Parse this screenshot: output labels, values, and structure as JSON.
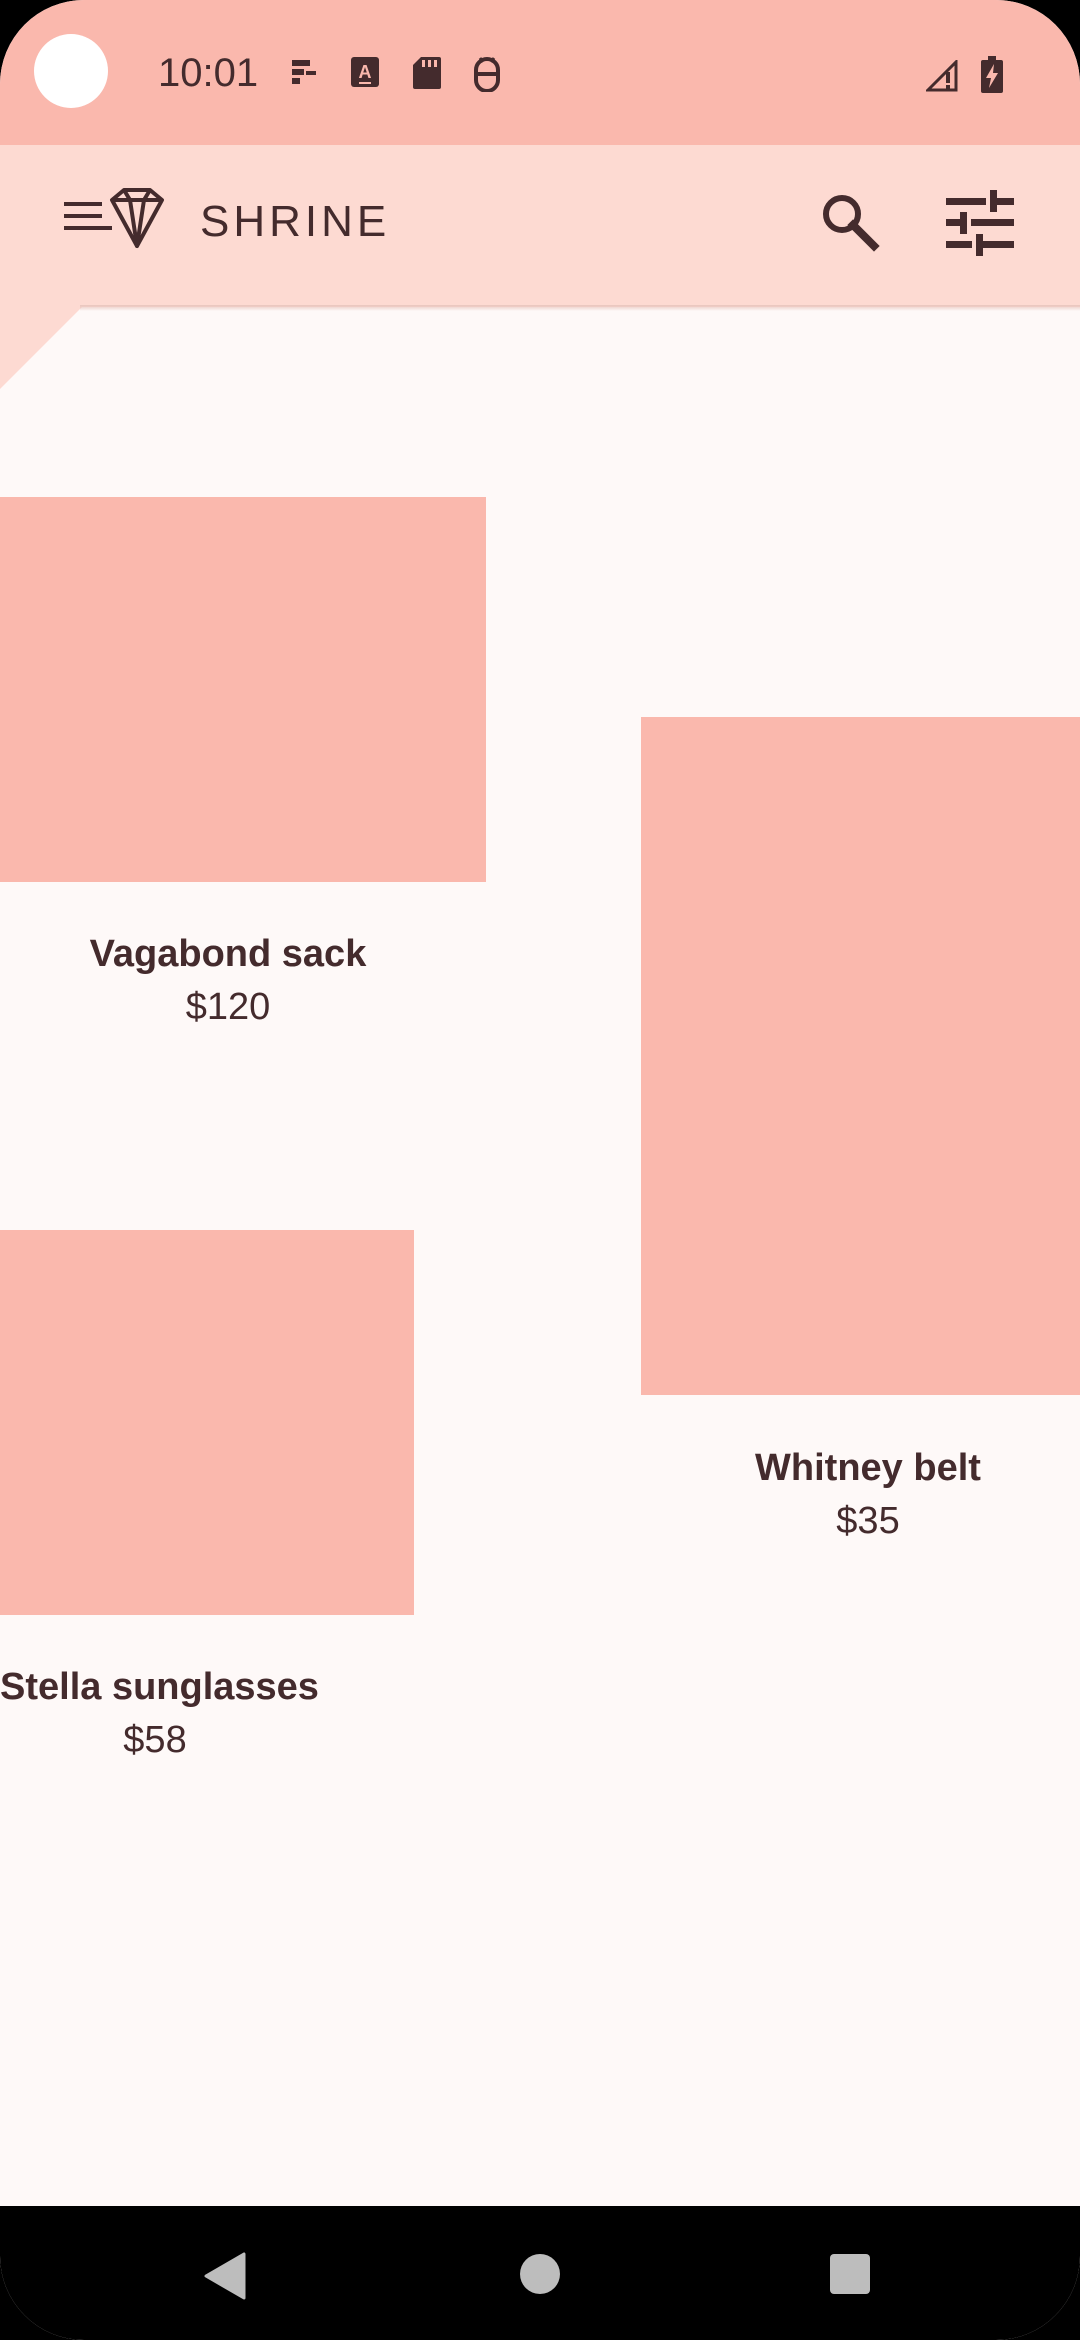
{
  "status_bar": {
    "time": "10:01",
    "icons": [
      "notification-icon",
      "keyboard-icon",
      "sd-card-icon",
      "android-debug-icon",
      "signal-icon",
      "battery-charging-icon"
    ]
  },
  "app_bar": {
    "title": "SHRINE",
    "icons": [
      "menu-icon",
      "diamond-logo-icon",
      "search-icon",
      "tune-icon"
    ]
  },
  "products": [
    {
      "name": "Vagabond sack",
      "price": "$120"
    },
    {
      "name": "Whitney belt",
      "price": "$35"
    },
    {
      "name": "Stella sunglasses",
      "price": "$58"
    }
  ],
  "colors": {
    "primary": "#FAB8AD",
    "app_bar": "#FDDAD2",
    "background": "#FEF9F8",
    "text": "#442B2D"
  },
  "nav_bar": {
    "buttons": [
      "back-icon",
      "home-icon",
      "recents-icon"
    ]
  }
}
